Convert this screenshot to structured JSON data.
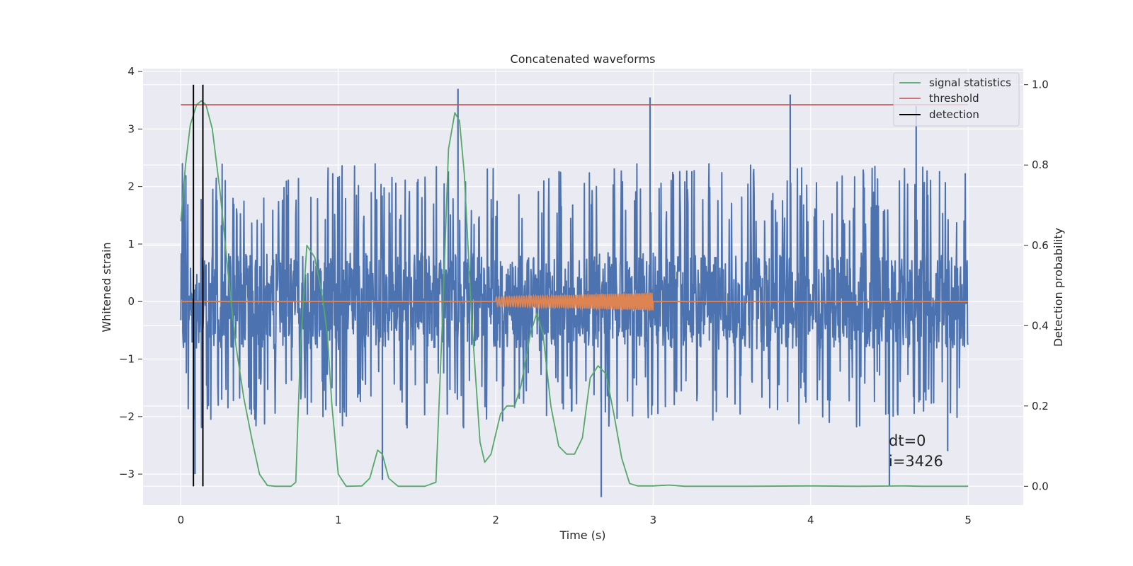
{
  "chart_data": {
    "type": "line",
    "title": "Concatenated waveforms",
    "xlabel": "Time (s)",
    "ylabel": "Whitened strain",
    "ylabel_right": "Detection probability",
    "xlim": [
      -0.24,
      5.35
    ],
    "ylim": [
      -3.54,
      4.05
    ],
    "ylim_right": [
      -0.047,
      1.04
    ],
    "x_ticks": [
      0,
      1,
      2,
      3,
      4,
      5
    ],
    "x_tick_labels": [
      "0",
      "1",
      "2",
      "3",
      "4",
      "5"
    ],
    "y_ticks": [
      -3,
      -2,
      -1,
      0,
      1,
      2,
      3,
      4
    ],
    "y_tick_labels": [
      "−3",
      "−2",
      "−1",
      "0",
      "1",
      "2",
      "3",
      "4"
    ],
    "y_right_ticks": [
      0.0,
      0.2,
      0.4,
      0.6,
      0.8,
      1.0
    ],
    "y_right_tick_labels": [
      "0.0",
      "0.2",
      "0.4",
      "0.6",
      "0.8",
      "1.0"
    ],
    "grid": true,
    "background": "#eaeaf2",
    "colors": {
      "strain": "#4c72b0",
      "injection": "#dd8452",
      "signal_statistics": "#55a868",
      "threshold": "#c44e52",
      "detection": "#000000"
    },
    "strain_series": {
      "x_range": [
        0,
        5
      ],
      "typical_peak_range": [
        -2.2,
        2.4
      ],
      "extreme_peaks": [
        {
          "x": 0.14,
          "y": 2.35
        },
        {
          "x": 0.09,
          "y": -3.0
        },
        {
          "x": 1.76,
          "y": 3.7
        },
        {
          "x": 2.98,
          "y": 3.55
        },
        {
          "x": 3.87,
          "y": 3.6
        },
        {
          "x": 4.67,
          "y": 3.4
        },
        {
          "x": 2.67,
          "y": -3.4
        },
        {
          "x": 4.5,
          "y": -3.2
        },
        {
          "x": 1.28,
          "y": -3.1
        },
        {
          "x": 4.87,
          "y": -2.6
        }
      ]
    },
    "injection_series": {
      "x_range": [
        0,
        5
      ],
      "chirp_range": [
        2.0,
        3.0
      ],
      "amplitude_start": 0.08,
      "amplitude_end": 0.15
    },
    "signal_statistics": [
      [
        0.0,
        0.66
      ],
      [
        0.03,
        0.8
      ],
      [
        0.06,
        0.9
      ],
      [
        0.1,
        0.95
      ],
      [
        0.13,
        0.96
      ],
      [
        0.16,
        0.95
      ],
      [
        0.2,
        0.89
      ],
      [
        0.25,
        0.73
      ],
      [
        0.3,
        0.53
      ],
      [
        0.35,
        0.35
      ],
      [
        0.4,
        0.22
      ],
      [
        0.45,
        0.12
      ],
      [
        0.5,
        0.03
      ],
      [
        0.55,
        0.002
      ],
      [
        0.6,
        0.0
      ],
      [
        0.7,
        0.0
      ],
      [
        0.73,
        0.01
      ],
      [
        0.76,
        0.35
      ],
      [
        0.8,
        0.6
      ],
      [
        0.85,
        0.57
      ],
      [
        0.9,
        0.47
      ],
      [
        0.93,
        0.38
      ],
      [
        0.96,
        0.2
      ],
      [
        1.0,
        0.03
      ],
      [
        1.05,
        0.0
      ],
      [
        1.15,
        0.001
      ],
      [
        1.2,
        0.02
      ],
      [
        1.25,
        0.09
      ],
      [
        1.28,
        0.08
      ],
      [
        1.32,
        0.02
      ],
      [
        1.38,
        0.0
      ],
      [
        1.55,
        0.0
      ],
      [
        1.62,
        0.01
      ],
      [
        1.66,
        0.4
      ],
      [
        1.7,
        0.84
      ],
      [
        1.74,
        0.93
      ],
      [
        1.77,
        0.91
      ],
      [
        1.8,
        0.78
      ],
      [
        1.85,
        0.4
      ],
      [
        1.9,
        0.11
      ],
      [
        1.93,
        0.06
      ],
      [
        1.97,
        0.08
      ],
      [
        2.0,
        0.13
      ],
      [
        2.03,
        0.18
      ],
      [
        2.07,
        0.2
      ],
      [
        2.12,
        0.2
      ],
      [
        2.16,
        0.25
      ],
      [
        2.22,
        0.38
      ],
      [
        2.26,
        0.43
      ],
      [
        2.3,
        0.38
      ],
      [
        2.35,
        0.2
      ],
      [
        2.4,
        0.1
      ],
      [
        2.45,
        0.08
      ],
      [
        2.5,
        0.08
      ],
      [
        2.55,
        0.12
      ],
      [
        2.6,
        0.27
      ],
      [
        2.65,
        0.3
      ],
      [
        2.7,
        0.28
      ],
      [
        2.75,
        0.18
      ],
      [
        2.8,
        0.07
      ],
      [
        2.85,
        0.007
      ],
      [
        2.9,
        0.001
      ],
      [
        3.0,
        0.001
      ],
      [
        3.05,
        0.002
      ],
      [
        3.1,
        0.003
      ],
      [
        3.2,
        0.0
      ],
      [
        3.6,
        0.0
      ],
      [
        4.0,
        0.001
      ],
      [
        4.3,
        0.0
      ],
      [
        4.6,
        0.001
      ],
      [
        4.7,
        0.0
      ],
      [
        5.0,
        0.0
      ]
    ],
    "threshold": {
      "x": [
        0,
        5
      ],
      "y": 0.95
    },
    "detections_x": [
      0.08,
      0.14
    ],
    "legend": {
      "position": "top-right",
      "entries": [
        {
          "label": "signal statistics",
          "color": "#55a868"
        },
        {
          "label": "threshold",
          "color": "#c44e52"
        },
        {
          "label": "detection",
          "color": "#000000"
        }
      ]
    },
    "annotation": {
      "lines": [
        "dt=0",
        "i=3426"
      ],
      "x": 4.5,
      "y": -2.65
    }
  }
}
